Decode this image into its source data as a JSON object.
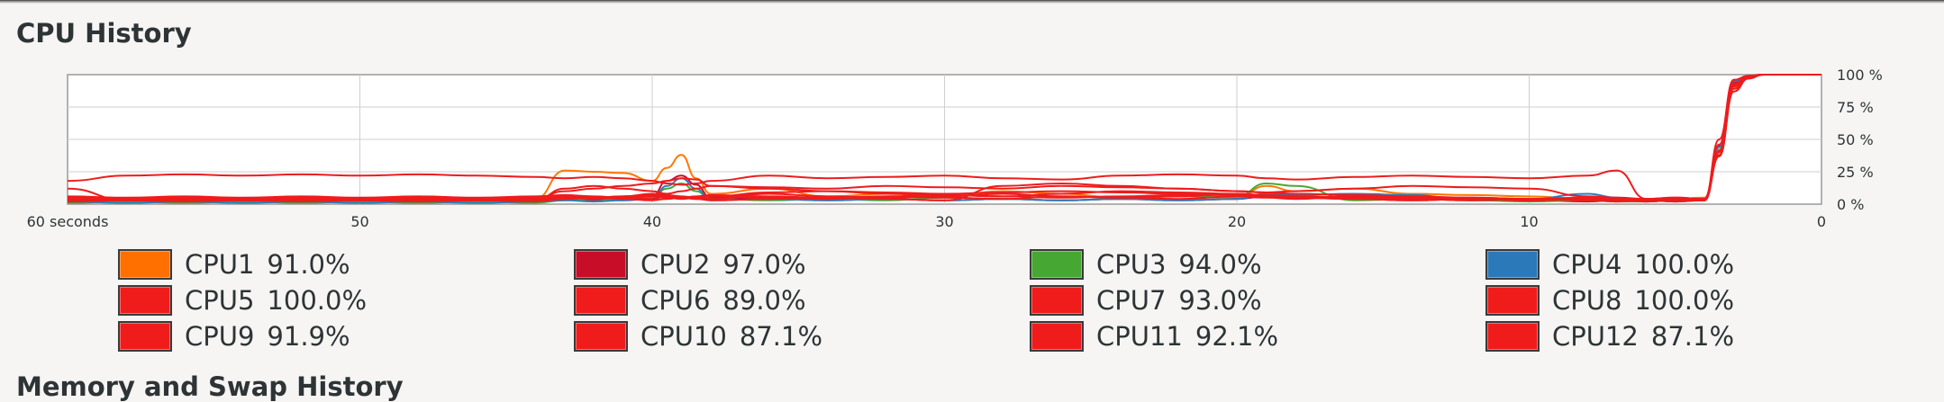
{
  "section": {
    "title": "CPU History",
    "next_title": "Memory and Swap History"
  },
  "chart_data": {
    "type": "line",
    "title": "CPU History",
    "xlabel": "",
    "ylabel": "",
    "x_ticks": [
      "60 seconds",
      "50",
      "40",
      "30",
      "20",
      "10",
      "0"
    ],
    "y_ticks": [
      "100 %",
      "75 %",
      "50 %",
      "25 %",
      "0 %"
    ],
    "xlim": [
      60,
      0
    ],
    "ylim": [
      0,
      100
    ],
    "grid": true,
    "x": [
      60,
      58,
      56,
      54,
      52,
      50,
      48,
      46,
      44,
      43,
      42,
      41,
      40,
      39.5,
      39,
      38.5,
      38,
      36,
      34,
      32,
      30,
      28,
      26,
      24,
      22,
      20,
      19,
      18,
      16,
      14,
      12,
      10,
      8,
      7,
      6,
      5,
      4,
      3.5,
      3,
      2.5,
      2,
      1,
      0
    ],
    "series": [
      {
        "name": "CPU1",
        "color": "#ff7800",
        "values": [
          4,
          3,
          4,
          3,
          4,
          3,
          4,
          3,
          4,
          26,
          25,
          24,
          18,
          28,
          38,
          20,
          8,
          12,
          6,
          8,
          6,
          10,
          8,
          5,
          6,
          5,
          14,
          10,
          12,
          8,
          7,
          6,
          4,
          4,
          3,
          4,
          5,
          40,
          90,
          98,
          100,
          100,
          100
        ]
      },
      {
        "name": "CPU2",
        "color": "#c7102d",
        "values": [
          2,
          2,
          3,
          2,
          2,
          3,
          2,
          2,
          2,
          4,
          3,
          5,
          6,
          18,
          22,
          15,
          5,
          4,
          3,
          4,
          3,
          4,
          3,
          4,
          3,
          4,
          6,
          5,
          4,
          3,
          4,
          3,
          2,
          3,
          2,
          3,
          4,
          45,
          94,
          99,
          100,
          100,
          100
        ]
      },
      {
        "name": "CPU3",
        "color": "#4aa832",
        "values": [
          1,
          2,
          1,
          2,
          1,
          2,
          1,
          2,
          1,
          3,
          4,
          3,
          5,
          12,
          16,
          10,
          4,
          3,
          4,
          3,
          5,
          4,
          3,
          4,
          6,
          6,
          16,
          14,
          3,
          4,
          3,
          2,
          3,
          2,
          2,
          3,
          3,
          42,
          92,
          98,
          100,
          100,
          100
        ]
      },
      {
        "name": "CPU4",
        "color": "#2f7bbd",
        "values": [
          2,
          1,
          2,
          1,
          2,
          1,
          2,
          1,
          2,
          3,
          2,
          3,
          4,
          14,
          20,
          12,
          3,
          4,
          3,
          4,
          3,
          4,
          3,
          4,
          3,
          4,
          8,
          7,
          8,
          7,
          3,
          4,
          8,
          5,
          3,
          2,
          3,
          44,
          95,
          99,
          100,
          100,
          100
        ]
      },
      {
        "name": "CPU5",
        "color": "#ee1c1c",
        "values": [
          18,
          22,
          23,
          22,
          23,
          22,
          23,
          22,
          21,
          20,
          21,
          20,
          18,
          16,
          15,
          16,
          18,
          22,
          20,
          21,
          22,
          20,
          19,
          22,
          23,
          22,
          20,
          19,
          21,
          22,
          21,
          20,
          22,
          26,
          4,
          5,
          4,
          50,
          96,
          99,
          100,
          100,
          100
        ]
      },
      {
        "name": "CPU6",
        "color": "#ee1c1c",
        "values": [
          12,
          3,
          4,
          3,
          4,
          3,
          4,
          3,
          4,
          10,
          12,
          14,
          16,
          18,
          20,
          19,
          14,
          12,
          10,
          8,
          7,
          6,
          8,
          10,
          9,
          8,
          7,
          6,
          5,
          4,
          3,
          4,
          3,
          2,
          3,
          2,
          3,
          38,
          89,
          97,
          100,
          100,
          100
        ]
      },
      {
        "name": "CPU7",
        "color": "#ee1c1c",
        "values": [
          3,
          4,
          5,
          4,
          5,
          4,
          5,
          4,
          3,
          12,
          14,
          12,
          10,
          8,
          10,
          12,
          14,
          13,
          12,
          14,
          13,
          12,
          14,
          13,
          12,
          10,
          9,
          10,
          12,
          14,
          13,
          12,
          6,
          5,
          4,
          5,
          4,
          40,
          93,
          98,
          100,
          100,
          100
        ]
      },
      {
        "name": "CPU8",
        "color": "#ee1c1c",
        "values": [
          2,
          3,
          2,
          3,
          2,
          3,
          2,
          3,
          2,
          4,
          5,
          6,
          8,
          7,
          6,
          5,
          4,
          8,
          6,
          5,
          6,
          8,
          6,
          5,
          6,
          8,
          6,
          5,
          6,
          5,
          4,
          3,
          4,
          3,
          2,
          3,
          4,
          46,
          96,
          99,
          100,
          100,
          100
        ]
      },
      {
        "name": "CPU9",
        "color": "#ee1c1c",
        "values": [
          6,
          5,
          6,
          5,
          6,
          5,
          6,
          5,
          6,
          7,
          6,
          5,
          4,
          6,
          5,
          4,
          6,
          5,
          4,
          6,
          5,
          4,
          6,
          5,
          4,
          6,
          5,
          4,
          6,
          5,
          4,
          3,
          4,
          3,
          4,
          3,
          4,
          41,
          91,
          98,
          100,
          100,
          100
        ]
      },
      {
        "name": "CPU10",
        "color": "#ee1c1c",
        "values": [
          4,
          3,
          4,
          3,
          4,
          3,
          4,
          3,
          4,
          5,
          4,
          5,
          6,
          5,
          4,
          5,
          6,
          9,
          10,
          9,
          8,
          9,
          10,
          9,
          8,
          7,
          6,
          5,
          4,
          3,
          4,
          3,
          4,
          3,
          3,
          4,
          3,
          37,
          87,
          97,
          100,
          100,
          100
        ]
      },
      {
        "name": "CPU11",
        "color": "#ee1c1c",
        "values": [
          3,
          4,
          3,
          4,
          3,
          4,
          3,
          4,
          3,
          4,
          5,
          4,
          3,
          4,
          5,
          4,
          3,
          4,
          5,
          4,
          3,
          14,
          16,
          14,
          12,
          10,
          9,
          8,
          7,
          6,
          5,
          4,
          5,
          4,
          3,
          4,
          3,
          41,
          92,
          98,
          100,
          100,
          100
        ]
      },
      {
        "name": "CPU12",
        "color": "#ee1c1c",
        "values": [
          5,
          4,
          5,
          4,
          5,
          4,
          5,
          4,
          5,
          6,
          5,
          6,
          7,
          6,
          5,
          6,
          7,
          6,
          5,
          6,
          7,
          6,
          5,
          6,
          7,
          8,
          7,
          6,
          5,
          4,
          5,
          4,
          3,
          4,
          3,
          4,
          3,
          37,
          87,
          97,
          100,
          100,
          100
        ]
      }
    ]
  },
  "legend": [
    {
      "name": "CPU1",
      "value": "91.0%",
      "color": "#ff7000"
    },
    {
      "name": "CPU2",
      "value": "97.0%",
      "color": "#c80d28"
    },
    {
      "name": "CPU3",
      "value": "94.0%",
      "color": "#46a832"
    },
    {
      "name": "CPU4",
      "value": "100.0%",
      "color": "#2b79b9"
    },
    {
      "name": "CPU5",
      "value": "100.0%",
      "color": "#f01c1c"
    },
    {
      "name": "CPU6",
      "value": "89.0%",
      "color": "#f01c1c"
    },
    {
      "name": "CPU7",
      "value": "93.0%",
      "color": "#f01c1c"
    },
    {
      "name": "CPU8",
      "value": "100.0%",
      "color": "#f01c1c"
    },
    {
      "name": "CPU9",
      "value": "91.9%",
      "color": "#f01c1c"
    },
    {
      "name": "CPU10",
      "value": "87.1%",
      "color": "#f01c1c"
    },
    {
      "name": "CPU11",
      "value": "92.1%",
      "color": "#f01c1c"
    },
    {
      "name": "CPU12",
      "value": "87.1%",
      "color": "#f01c1c"
    }
  ]
}
